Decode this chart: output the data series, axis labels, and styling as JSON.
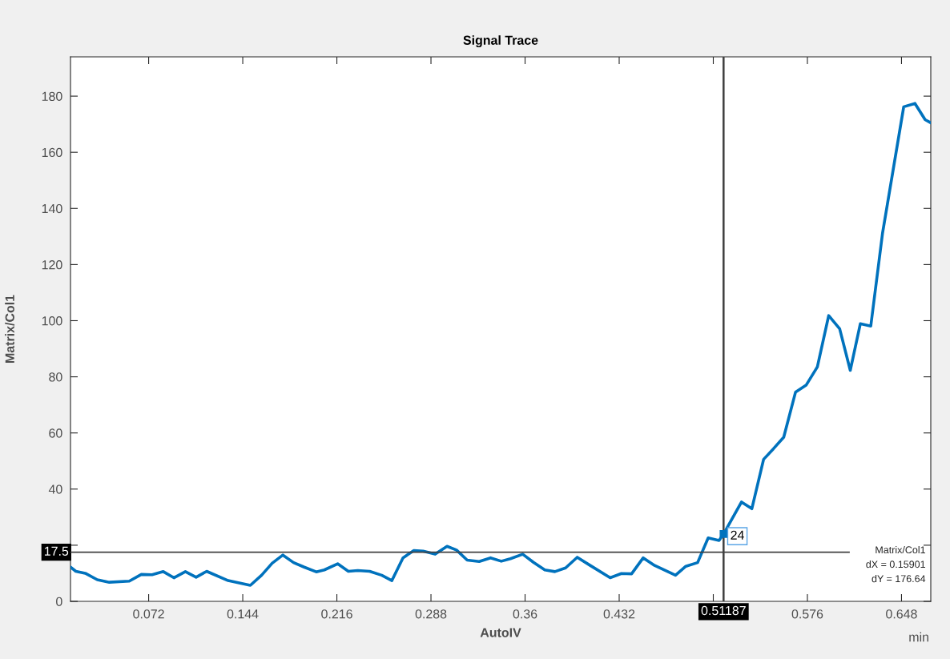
{
  "chart_data": {
    "type": "line",
    "title": "Signal Trace",
    "xlabel": "AutoIV",
    "ylabel": "Matrix/Col1",
    "series": [
      {
        "color": "#0072bd",
        "line_style": "solid",
        "x": [
          0.0122,
          0.0163,
          0.0235,
          0.0327,
          0.0419,
          0.0572,
          0.0664,
          0.0746,
          0.0832,
          0.0913,
          0.1001,
          0.1083,
          0.1164,
          0.1328,
          0.1498,
          0.1584,
          0.1665,
          0.1747,
          0.1829,
          0.191,
          0.2002,
          0.2064,
          0.2166,
          0.2248,
          0.232,
          0.2411,
          0.2503,
          0.2581,
          0.2666,
          0.2749,
          0.282,
          0.2912,
          0.3003,
          0.3075,
          0.3157,
          0.3249,
          0.3336,
          0.3418,
          0.3488,
          0.3582,
          0.3664,
          0.3751,
          0.3828,
          0.391,
          0.3999,
          0.4098,
          0.4251,
          0.4337,
          0.4415,
          0.4504,
          0.4591,
          0.4751,
          0.483,
          0.492,
          0.5001,
          0.5084,
          0.51187,
          0.5256,
          0.5335,
          0.5425,
          0.5499,
          0.5579,
          0.5669,
          0.575,
          0.5836,
          0.5923,
          0.6007,
          0.6088,
          0.6165,
          0.6245,
          0.6335,
          0.6497,
          0.6583,
          0.6661,
          0.6704
        ],
        "values": [
          12.2,
          10.7,
          10.0,
          7.7,
          6.8,
          7.2,
          9.6,
          9.5,
          10.6,
          8.4,
          10.6,
          8.6,
          10.7,
          7.4,
          5.7,
          9.3,
          13.6,
          16.5,
          13.8,
          12.2,
          10.5,
          11.2,
          13.4,
          10.7,
          11.0,
          10.7,
          9.3,
          7.4,
          15.5,
          18.1,
          17.9,
          16.8,
          19.6,
          18.3,
          14.7,
          14.2,
          15.5,
          14.3,
          15.2,
          16.8,
          13.9,
          11.2,
          10.6,
          11.9,
          15.7,
          12.8,
          8.4,
          9.9,
          9.8,
          15.5,
          12.8,
          9.3,
          12.5,
          13.8,
          22.6,
          21.7,
          24,
          35.4,
          33.0,
          50.6,
          54.3,
          58.5,
          74.5,
          77.0,
          83.5,
          101.8,
          97.1,
          82.3,
          98.9,
          98.1,
          131.2,
          176.2,
          177.4,
          171.6,
          170.5
        ]
      }
    ],
    "xlim": [
      0.0122,
      0.6704
    ],
    "xticks": [
      0.072,
      0.144,
      0.216,
      0.288,
      0.36,
      0.432,
      {
        "value": 0.504,
        "label": null
      },
      0.576,
      0.648
    ],
    "ylim": [
      0,
      194
    ],
    "yticks": [
      0,
      {
        "value": 20,
        "label": null
      },
      40,
      60,
      80,
      100,
      120,
      140,
      160,
      180
    ],
    "ref_lines": [
      {
        "axis": "y",
        "value": 17.5,
        "label": "17.5",
        "color": "#404040"
      },
      {
        "axis": "x",
        "value": 0.51187,
        "label": "0.51187",
        "color": "#404040"
      }
    ],
    "annotations": [
      "min",
      "Matrix/Col1",
      "dX = 0.15901",
      "dY = 176.64",
      {
        "text": "24",
        "x": 0.51187,
        "y": 24
      }
    ]
  }
}
